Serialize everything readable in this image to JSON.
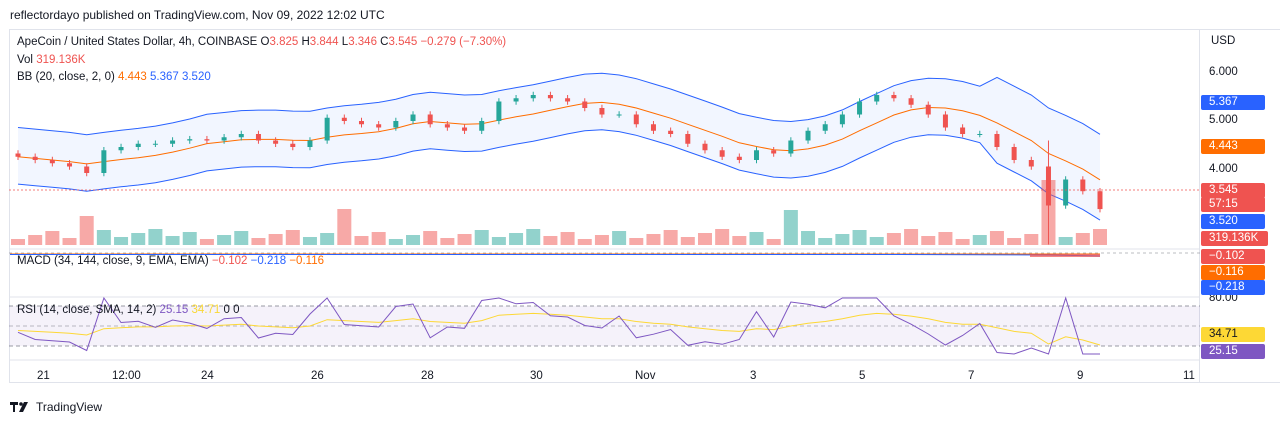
{
  "published": "reflectordayo published on TradingView.com, Nov 09, 2022 12:02 UTC",
  "legend": {
    "symbol": "ApeCoin / United States Dollar, 4h, COINBASE",
    "o_label": "O",
    "o": "3.825",
    "h_label": "H",
    "h": "3.844",
    "l_label": "L",
    "l": "3.346",
    "c_label": "C",
    "c": "3.545",
    "change": "−0.279 (−7.30%)",
    "vol_label": "Vol",
    "vol": "319.136K",
    "bb_label": "BB (20, close, 2, 0)",
    "bb_basis": "4.443",
    "bb_upper": "5.367",
    "bb_lower": "3.520",
    "macd_label": "MACD (34, 144, close, 9, EMA, EMA)",
    "macd_hist": "−0.102",
    "macd_line": "−0.218",
    "macd_signal": "−0.116",
    "rsi_label": "RSI (14, close, SMA, 14, 2)",
    "rsi": "25.15",
    "rsi_ma": "34.71",
    "rsi_extra1": "0",
    "rsi_extra2": "0"
  },
  "axis": {
    "currency": "USD",
    "ticks": [
      "6.000",
      "5.000",
      "4.000"
    ],
    "rsi_tick": "80.00",
    "tags": {
      "upper": "5.367",
      "basis": "4.443",
      "price": "3.545",
      "countdown": "57:15",
      "lower": "3.520",
      "volume": "319.136K",
      "macd_hist": "−0.102",
      "macd_signal": "−0.116",
      "macd_line": "−0.218",
      "rsi_ma": "34.71",
      "rsi": "25.15"
    }
  },
  "xaxis": [
    "21",
    "12:00",
    "24",
    "26",
    "28",
    "30",
    "Nov",
    "3",
    "5",
    "7",
    "9",
    "11"
  ],
  "footer": {
    "brand": "TradingView"
  },
  "colors": {
    "up": "#26a69a",
    "down": "#ef5350",
    "bb_band": "#2962ff",
    "bb_basis": "#ff6d00",
    "rsi": "#7e57c2",
    "rsi_ma": "#fdd835"
  },
  "chart_data": {
    "type": "candlestick",
    "x_range": [
      "Oct 20",
      "Nov 11"
    ],
    "y_range": [
      3.1,
      6.3
    ],
    "close_series": [
      4.35,
      4.3,
      4.25,
      4.2,
      4.1,
      4.45,
      4.5,
      4.55,
      4.55,
      4.6,
      4.62,
      4.6,
      4.65,
      4.7,
      4.6,
      4.55,
      4.5,
      4.6,
      4.95,
      4.9,
      4.85,
      4.8,
      4.9,
      5.0,
      4.85,
      4.8,
      4.75,
      4.9,
      5.2,
      5.25,
      5.3,
      5.25,
      5.2,
      5.1,
      5.0,
      5.0,
      4.85,
      4.75,
      4.7,
      4.55,
      4.45,
      4.35,
      4.3,
      4.45,
      4.4,
      4.6,
      4.75,
      4.85,
      5.0,
      5.2,
      5.3,
      5.25,
      5.15,
      5.0,
      4.8,
      4.7,
      4.7,
      4.5,
      4.3,
      4.2,
      3.6,
      4.0,
      3.82,
      3.545
    ]
  }
}
